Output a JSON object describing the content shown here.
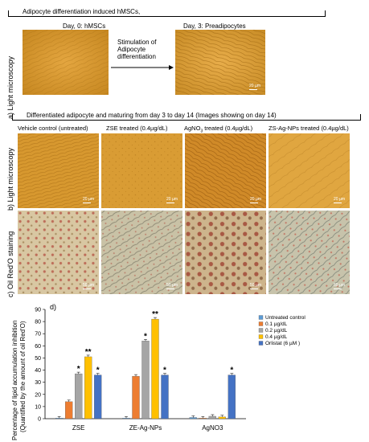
{
  "panel_a": {
    "bracket_title": "Adipocyte differentiation induced hMSCs,",
    "day0_label": "Day, 0: hMSCs",
    "day3_label": "Day, 3: Preadipocytes",
    "arrow_text_1": "Stimulation of",
    "arrow_text_2": "Adipocyte",
    "arrow_text_3": "differentiation",
    "side_label": "a) Light microscopy",
    "scale_label": "20 µm"
  },
  "panel_b": {
    "bracket_title": "Differentiated adipocyte and maturing from day 3 to day 14 (Images showing on day 14)",
    "col1": "Vehicle control (untreated)",
    "col2": "ZSE treated (0.4µg/dL)",
    "col3": "AgNO",
    "col3_sub": "3",
    "col3_rest": " treated (0.4µg/dL)",
    "col4": "ZS-Ag-NPs treated (0.4µg/dL)",
    "side_label": "b) Light microscopy",
    "scale_label": "20 µm"
  },
  "panel_c": {
    "side_label": "c) Oil Red'O staining",
    "scale_label": "50 µm"
  },
  "panel_d": {
    "panel_label": "d)",
    "ylabel_1": "Percentage of lipid accumulation inhibition",
    "ylabel_2": "(Quantified by the amount of oil Red'O)"
  },
  "chart_data": {
    "type": "bar",
    "categories": [
      "ZSE",
      "ZE-Ag-NPs",
      "AgNO3"
    ],
    "series": [
      {
        "name": "Untreated control",
        "color": "#5b9bd5",
        "values": [
          0.5,
          0.5,
          1
        ],
        "sig": [
          "",
          "",
          ""
        ]
      },
      {
        "name": "0.1 µg/dL",
        "color": "#ed7d31",
        "values": [
          14,
          35,
          0.5
        ],
        "sig": [
          "",
          "",
          ""
        ]
      },
      {
        "name": "0.2 µg/dL",
        "color": "#a5a5a5",
        "values": [
          37,
          64,
          2
        ],
        "sig": [
          "*",
          "*",
          ""
        ]
      },
      {
        "name": "0.4 µg/dL",
        "color": "#ffc000",
        "values": [
          51,
          82,
          1.5
        ],
        "sig": [
          "**",
          "**",
          ""
        ]
      },
      {
        "name": "Orlistat (6 µM )",
        "color": "#4472c4",
        "values": [
          36,
          36,
          36
        ],
        "sig": [
          "*",
          "*",
          "*"
        ]
      }
    ],
    "ylim": [
      0,
      90
    ],
    "yticks": [
      0,
      10,
      20,
      30,
      40,
      50,
      60,
      70,
      80,
      90
    ],
    "legend_position": "top-right"
  }
}
